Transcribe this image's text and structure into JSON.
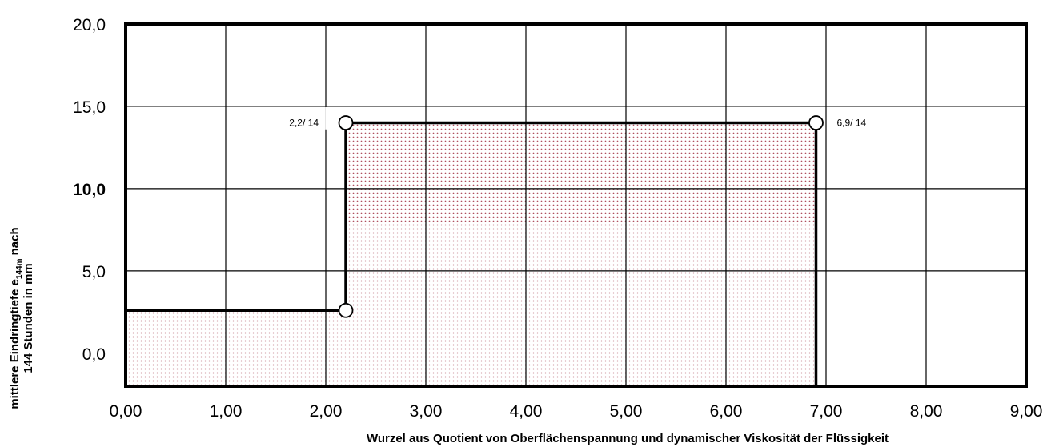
{
  "chart_data": {
    "type": "area",
    "xlabel": "Wurzel aus Quotient von Oberflächenspannung und dynamischer Viskosität der Flüssigkeit",
    "ylabel_line1_pre": "mittlere  Eindringtiefe  e",
    "ylabel_line1_sub": "144m",
    "ylabel_line1_post": " nach",
    "ylabel_line2": "144 Stunden in mm",
    "xlim": [
      0,
      9
    ],
    "ylim": [
      -2,
      20
    ],
    "x_ticks": [
      0,
      1,
      2,
      3,
      4,
      5,
      6,
      7,
      8,
      9
    ],
    "x_tick_labels": [
      "0,00",
      "1,00",
      "2,00",
      "3,00",
      "4,00",
      "5,00",
      "6,00",
      "7,00",
      "8,00",
      "9,00"
    ],
    "y_tick_positions": [
      0,
      5,
      10,
      15,
      20
    ],
    "y_gridlines": [
      5,
      10,
      15
    ],
    "y_tick_labels": [
      {
        "value": 20,
        "label": "20,0",
        "y_pos": 20,
        "bold": false
      },
      {
        "value": 15,
        "label": "15,0",
        "y_pos": 15,
        "bold": false
      },
      {
        "value": 10,
        "label": "10,0",
        "y_pos": 10,
        "bold": true
      },
      {
        "value": 5,
        "label": "5,0",
        "y_pos": 5,
        "bold": false
      },
      {
        "value": 0,
        "label": "0,0",
        "y_pos": 0,
        "bold": false
      }
    ],
    "grid": true,
    "series": [
      {
        "points": [
          {
            "x": 0,
            "y": 2.6
          },
          {
            "x": 2.2,
            "y": 2.6
          },
          {
            "x": 2.2,
            "y": 14
          },
          {
            "x": 6.9,
            "y": 14
          },
          {
            "x": 6.9,
            "y": -2
          }
        ]
      }
    ],
    "markers": [
      {
        "x": 2.2,
        "y": 2.6,
        "label": ""
      },
      {
        "x": 2.2,
        "y": 14,
        "label": "2,2/ 14"
      },
      {
        "x": 6.9,
        "y": 14,
        "label": "6,9/ 14"
      }
    ],
    "colors": {
      "hatch": "#b05060",
      "line": "#000000",
      "marker_fill": "#ffffff"
    }
  }
}
